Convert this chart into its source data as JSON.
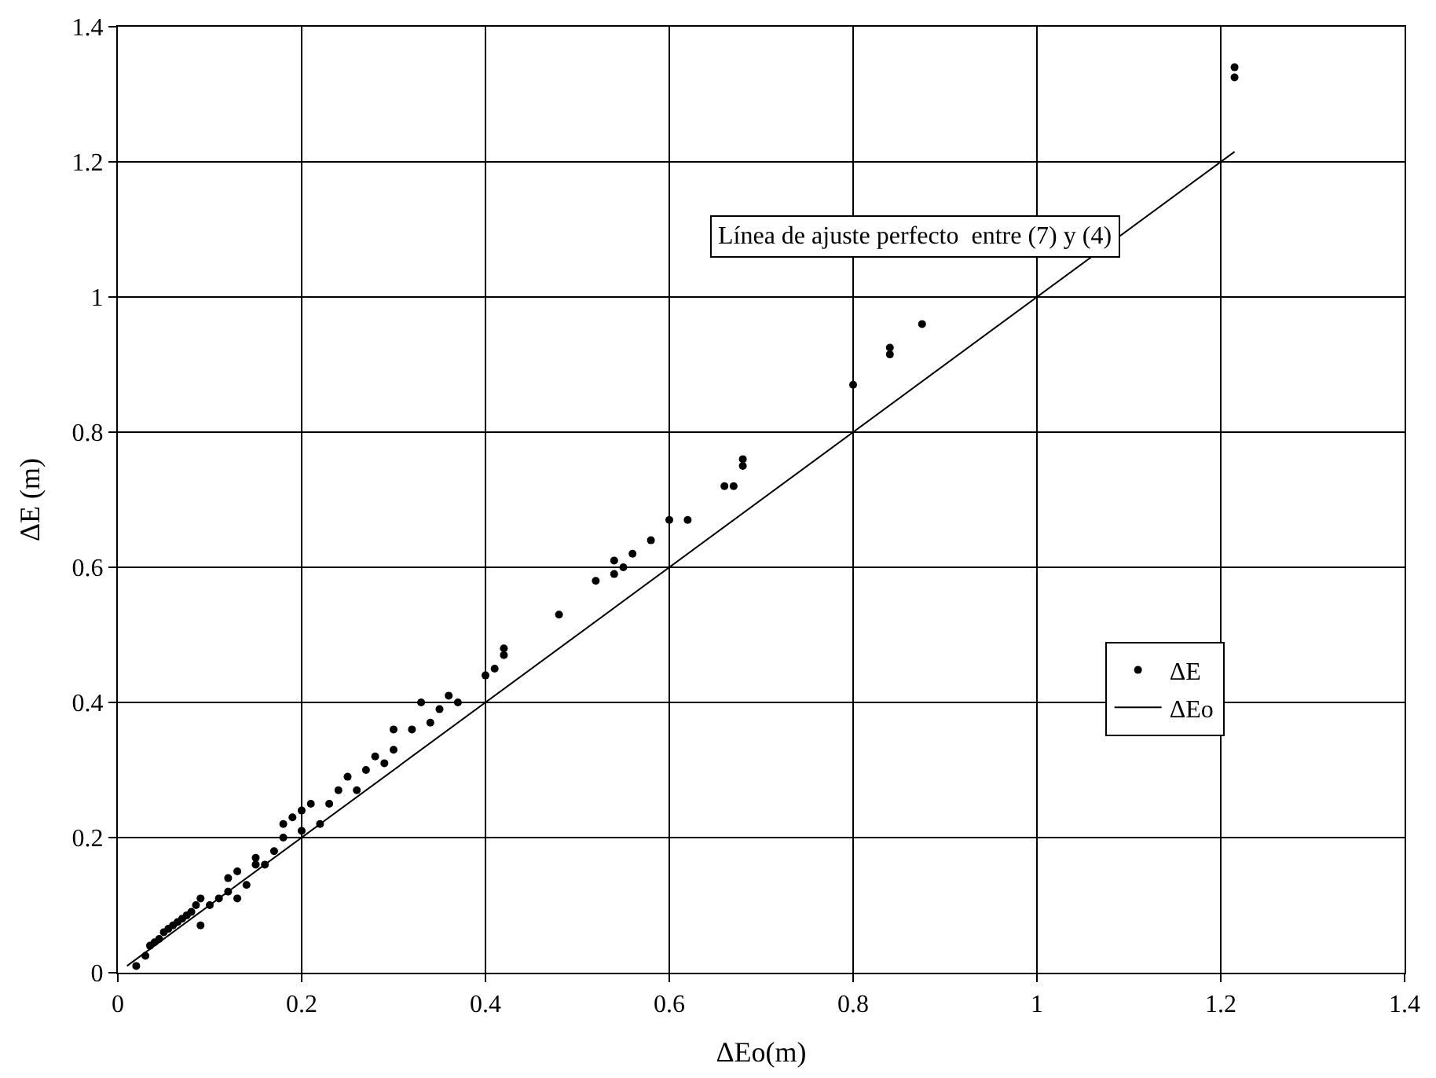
{
  "chart_data": {
    "type": "scatter",
    "xlabel": "ΔEo(m)",
    "ylabel": "ΔE (m)",
    "xlim": [
      0,
      1.4
    ],
    "ylim": [
      0,
      1.4
    ],
    "xticks": [
      0,
      0.2,
      0.4,
      0.6,
      0.8,
      1,
      1.2,
      1.4
    ],
    "yticks": [
      0,
      0.2,
      0.4,
      0.6,
      0.8,
      1,
      1.2,
      1.4
    ],
    "grid": true,
    "legend": "right",
    "marker": "circle",
    "annotations": [
      "Línea de ajuste perfecto  entre (7) y (4)"
    ],
    "series": [
      {
        "name": "ΔE",
        "color": "#000000",
        "x": [
          0.02,
          0.03,
          0.035,
          0.04,
          0.045,
          0.05,
          0.055,
          0.06,
          0.065,
          0.07,
          0.075,
          0.08,
          0.085,
          0.09,
          0.09,
          0.1,
          0.11,
          0.12,
          0.12,
          0.13,
          0.13,
          0.14,
          0.15,
          0.15,
          0.16,
          0.17,
          0.18,
          0.18,
          0.19,
          0.2,
          0.2,
          0.21,
          0.22,
          0.23,
          0.24,
          0.25,
          0.26,
          0.27,
          0.28,
          0.29,
          0.3,
          0.3,
          0.32,
          0.33,
          0.34,
          0.35,
          0.36,
          0.37,
          0.4,
          0.41,
          0.42,
          0.42,
          0.48,
          0.52,
          0.54,
          0.54,
          0.55,
          0.56,
          0.58,
          0.6,
          0.62,
          0.66,
          0.67,
          0.68,
          0.68,
          0.8,
          0.84,
          0.84,
          0.875,
          1.215,
          1.215
        ],
        "values": [
          0.01,
          0.025,
          0.04,
          0.045,
          0.05,
          0.06,
          0.065,
          0.07,
          0.075,
          0.08,
          0.085,
          0.09,
          0.1,
          0.11,
          0.07,
          0.1,
          0.11,
          0.14,
          0.12,
          0.15,
          0.11,
          0.13,
          0.16,
          0.17,
          0.16,
          0.18,
          0.2,
          0.22,
          0.23,
          0.24,
          0.21,
          0.25,
          0.22,
          0.25,
          0.27,
          0.29,
          0.27,
          0.3,
          0.32,
          0.31,
          0.33,
          0.36,
          0.36,
          0.4,
          0.37,
          0.39,
          0.41,
          0.4,
          0.44,
          0.45,
          0.47,
          0.48,
          0.53,
          0.58,
          0.61,
          0.59,
          0.6,
          0.62,
          0.64,
          0.67,
          0.67,
          0.72,
          0.72,
          0.75,
          0.76,
          0.87,
          0.915,
          0.925,
          0.96,
          1.325,
          1.34
        ]
      },
      {
        "name": "ΔEo",
        "type": "line",
        "color": "#000000",
        "line_style": "solid",
        "marker": "none",
        "x": [
          0.01,
          1.215
        ],
        "values": [
          0.01,
          1.215
        ]
      }
    ]
  }
}
